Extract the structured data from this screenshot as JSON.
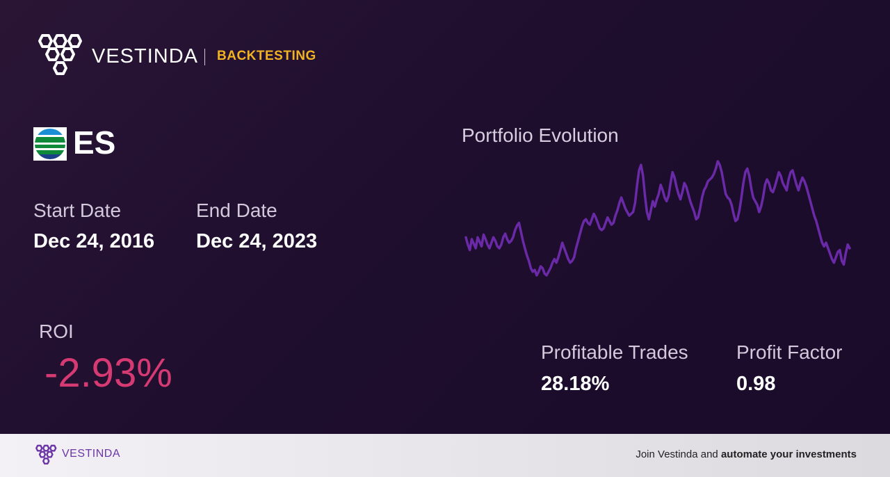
{
  "brand": {
    "name": "VESTINDA",
    "product": "BACKTESTING"
  },
  "ticker": {
    "symbol": "ES",
    "flag_icon": "utility-logo-icon"
  },
  "dates": {
    "start_label": "Start Date",
    "start_value": "Dec 24, 2016",
    "end_label": "End Date",
    "end_value": "Dec 24, 2023"
  },
  "roi": {
    "label": "ROI",
    "value": "-2.93%",
    "color": "#d63a72"
  },
  "stats": {
    "profitable_label": "Profitable Trades",
    "profitable_value": "28.18%",
    "factor_label": "Profit Factor",
    "factor_value": "0.98"
  },
  "chart_title": "Portfolio Evolution",
  "chart_data": {
    "type": "line",
    "title": "Portfolio Evolution",
    "xlabel": "",
    "ylabel": "",
    "grid": false,
    "line_color": "#6a2aa8",
    "values": [
      52,
      44,
      38,
      50,
      45,
      40,
      52,
      47,
      42,
      55,
      50,
      44,
      40,
      46,
      52,
      48,
      42,
      40,
      44,
      52,
      56,
      50,
      46,
      48,
      52,
      60,
      65,
      68,
      58,
      48,
      40,
      32,
      26,
      18,
      14,
      16,
      10,
      14,
      20,
      18,
      12,
      10,
      14,
      18,
      24,
      28,
      24,
      30,
      38,
      46,
      40,
      34,
      28,
      24,
      26,
      30,
      40,
      48,
      56,
      64,
      70,
      72,
      68,
      66,
      72,
      78,
      74,
      68,
      62,
      60,
      62,
      68,
      74,
      70,
      66,
      68,
      76,
      82,
      90,
      96,
      90,
      84,
      80,
      76,
      78,
      80,
      90,
      110,
      126,
      132,
      120,
      98,
      80,
      72,
      82,
      92,
      86,
      94,
      100,
      110,
      104,
      96,
      92,
      98,
      112,
      124,
      118,
      108,
      100,
      94,
      102,
      112,
      108,
      100,
      92,
      86,
      80,
      72,
      74,
      84,
      96,
      104,
      108,
      114,
      116,
      118,
      122,
      128,
      136,
      132,
      124,
      112,
      100,
      96,
      94,
      88,
      78,
      70,
      72,
      82,
      96,
      112,
      124,
      128,
      120,
      106,
      96,
      92,
      88,
      80,
      86,
      96,
      110,
      116,
      112,
      104,
      102,
      108,
      116,
      124,
      120,
      112,
      108,
      104,
      116,
      124,
      126,
      118,
      110,
      104,
      112,
      118,
      114,
      108,
      100,
      92,
      84,
      76,
      70,
      62,
      54,
      46,
      42,
      46,
      40,
      34,
      28,
      24,
      30,
      36,
      38,
      26,
      22,
      34,
      44,
      40
    ]
  },
  "footer": {
    "brand": "VESTINDA",
    "cta_prefix": "Join Vestinda and ",
    "cta_bold": "automate your investments"
  }
}
